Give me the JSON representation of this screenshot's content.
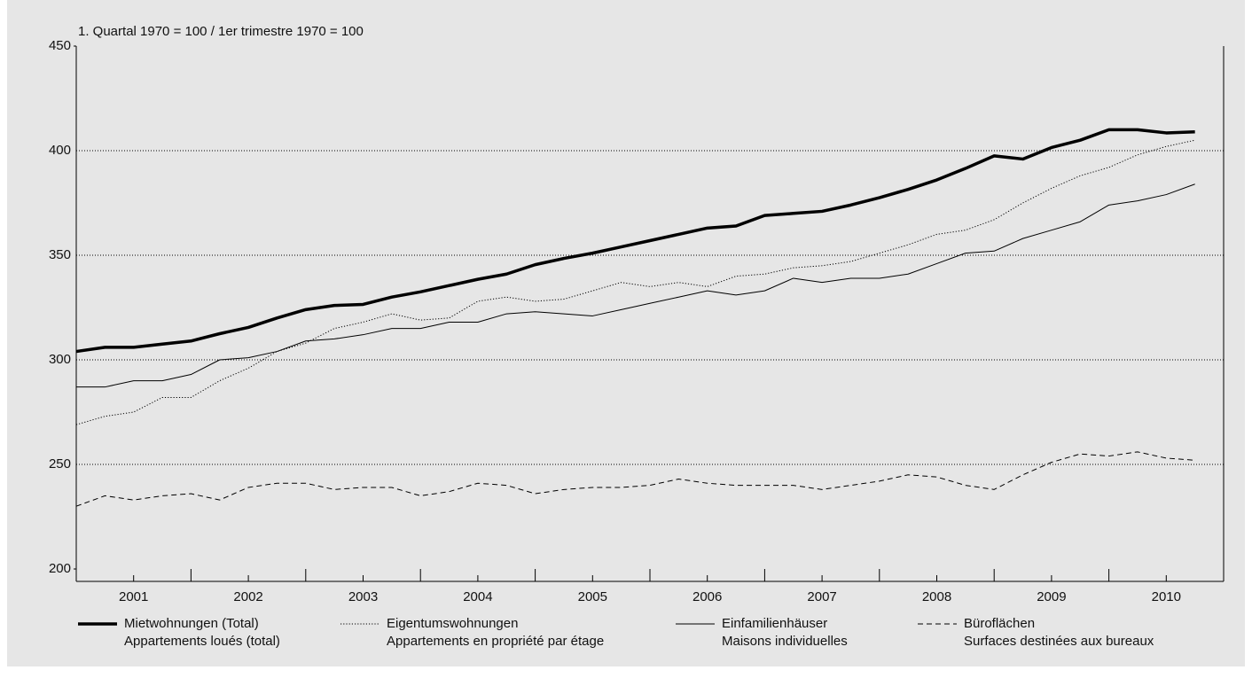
{
  "chart_data": {
    "type": "line",
    "axis_title": "1. Quartal 1970 = 100 / 1er trimestre 1970 = 100",
    "x": [
      2001,
      2001.25,
      2001.5,
      2001.75,
      2002,
      2002.25,
      2002.5,
      2002.75,
      2003,
      2003.25,
      2003.5,
      2003.75,
      2004,
      2004.25,
      2004.5,
      2004.75,
      2005,
      2005.25,
      2005.5,
      2005.75,
      2006,
      2006.25,
      2006.5,
      2006.75,
      2007,
      2007.25,
      2007.5,
      2007.75,
      2008,
      2008.25,
      2008.5,
      2008.75,
      2009,
      2009.25,
      2009.5,
      2009.75,
      2010,
      2010.25,
      2010.5,
      2010.75
    ],
    "xlim": [
      2001,
      2011
    ],
    "xticks": [
      {
        "value": 2001.5,
        "label": "2001"
      },
      {
        "value": 2002.5,
        "label": "2002"
      },
      {
        "value": 2003.5,
        "label": "2003"
      },
      {
        "value": 2004.5,
        "label": "2004"
      },
      {
        "value": 2005.5,
        "label": "2005"
      },
      {
        "value": 2006.5,
        "label": "2006"
      },
      {
        "value": 2007.5,
        "label": "2007"
      },
      {
        "value": 2008.5,
        "label": "2008"
      },
      {
        "value": 2009.5,
        "label": "2009"
      },
      {
        "value": 2010.5,
        "label": "2010"
      }
    ],
    "ylim": [
      200,
      450
    ],
    "yticks": [
      200,
      250,
      300,
      350,
      400,
      450
    ],
    "grid": true,
    "series": [
      {
        "name": "Mietwohnungen (Total)\nAppartements loués (total)",
        "color": "#000000",
        "line_style": "thick",
        "values": [
          304,
          306,
          306,
          307.5,
          309,
          312.5,
          315.5,
          320,
          324,
          326,
          326.5,
          330,
          332.5,
          335.5,
          338.5,
          341,
          345.5,
          348.5,
          351,
          354,
          357,
          360,
          363,
          364,
          369,
          370,
          371,
          374,
          377.5,
          381.5,
          386,
          391.5,
          397.5,
          396,
          401.5,
          405,
          410,
          410,
          408.5,
          409
        ]
      },
      {
        "name": "Eigentumswohnungen\nAppartements en propriété par étage",
        "color": "#000000",
        "line_style": "dotted",
        "values": [
          269,
          273,
          275,
          282,
          282,
          290,
          296,
          304,
          308,
          315,
          318,
          322,
          319,
          320,
          328,
          330,
          328,
          329,
          333,
          337,
          335,
          337,
          335,
          340,
          341,
          344,
          345,
          347,
          351,
          355,
          360,
          362,
          367,
          375,
          382,
          388,
          392,
          398,
          402,
          405
        ]
      },
      {
        "name": "Einfamilienhäuser\nMaisons individuelles",
        "color": "#000000",
        "line_style": "solid",
        "values": [
          287,
          287,
          290,
          290,
          293,
          300,
          301,
          304,
          309,
          310,
          312,
          315,
          315,
          318,
          318,
          322,
          323,
          322,
          321,
          324,
          327,
          330,
          333,
          331,
          333,
          339,
          337,
          339,
          339,
          341,
          346,
          351,
          352,
          358,
          362,
          366,
          374,
          376,
          379,
          384
        ]
      },
      {
        "name": "Büroflächen\nSurfaces destinées aux bureaux",
        "color": "#000000",
        "line_style": "dashed",
        "values": [
          230,
          235,
          233,
          235,
          236,
          233,
          239,
          241,
          241,
          238,
          239,
          239,
          235,
          237,
          241,
          240,
          236,
          238,
          239,
          239,
          240,
          243,
          241,
          240,
          240,
          240,
          238,
          240,
          242,
          245,
          244,
          240,
          238,
          245,
          251,
          255,
          254,
          256,
          253,
          252
        ]
      }
    ]
  }
}
